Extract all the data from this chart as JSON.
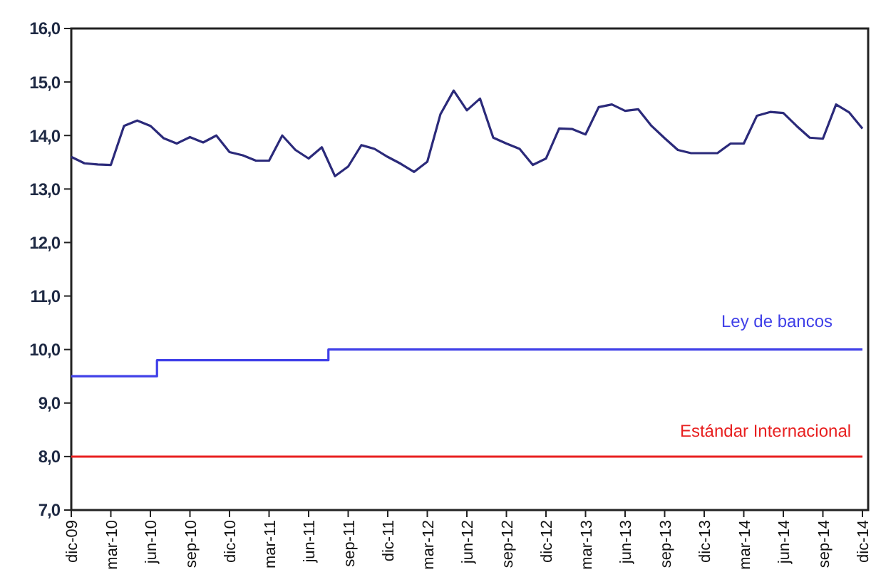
{
  "chart_data": {
    "type": "line",
    "categories": [
      "dic-09",
      null,
      null,
      "mar-10",
      null,
      null,
      "jun-10",
      null,
      null,
      "sep-10",
      null,
      null,
      "dic-10",
      null,
      null,
      "mar-11",
      null,
      null,
      "jun-11",
      null,
      null,
      "sep-11",
      null,
      null,
      "dic-11",
      null,
      null,
      "mar-12",
      null,
      null,
      "jun-12",
      null,
      null,
      "sep-12",
      null,
      null,
      "dic-12",
      null,
      null,
      "mar-13",
      null,
      null,
      "jun-13",
      null,
      null,
      "sep-13",
      null,
      null,
      "dic-13",
      null,
      null,
      "mar-14",
      null,
      null,
      "jun-14",
      null,
      null,
      "sep-14",
      null,
      null,
      "dic-14"
    ],
    "series": [
      {
        "color": "#2b2a7a",
        "values": [
          13.6,
          13.48,
          13.46,
          13.45,
          14.18,
          14.28,
          14.18,
          13.95,
          13.85,
          13.97,
          13.87,
          14.0,
          13.69,
          13.63,
          13.53,
          13.53,
          14.0,
          13.73,
          13.57,
          13.78,
          13.24,
          13.42,
          13.82,
          13.75,
          13.6,
          13.47,
          13.32,
          13.51,
          14.4,
          14.84,
          14.47,
          14.69,
          13.96,
          13.85,
          13.75,
          13.45,
          13.57,
          14.13,
          14.12,
          14.02,
          14.53,
          14.58,
          14.46,
          14.49,
          14.18,
          13.95,
          13.73,
          13.67,
          13.67,
          13.67,
          13.85,
          13.85,
          14.37,
          14.44,
          14.42,
          14.18,
          13.96,
          13.94,
          14.58,
          14.43,
          14.13
        ]
      },
      {
        "name": "Ley de bancos",
        "type": "step",
        "color": "#4040e8",
        "values": [
          9.5,
          9.5,
          9.5,
          9.5,
          9.5,
          9.5,
          9.5,
          9.8,
          9.8,
          9.8,
          9.8,
          9.8,
          9.8,
          9.8,
          9.8,
          9.8,
          9.8,
          9.8,
          9.8,
          9.8,
          10.0,
          10.0,
          10.0,
          10.0,
          10.0,
          10.0,
          10.0,
          10.0,
          10.0,
          10.0,
          10.0,
          10.0,
          10.0,
          10.0,
          10.0,
          10.0,
          10.0,
          10.0,
          10.0,
          10.0,
          10.0,
          10.0,
          10.0,
          10.0,
          10.0,
          10.0,
          10.0,
          10.0,
          10.0,
          10.0,
          10.0,
          10.0,
          10.0,
          10.0,
          10.0,
          10.0,
          10.0,
          10.0,
          10.0,
          10.0,
          10.0
        ]
      }
    ],
    "ref_lines": [
      {
        "axis": "y",
        "value": 8.0,
        "label": "Estándar Internacional",
        "color": "#e82020"
      }
    ],
    "ylim": [
      7,
      16
    ],
    "yticks": [
      {
        "value": 7,
        "label": "7,0"
      },
      {
        "value": 8,
        "label": "8,0"
      },
      {
        "value": 9,
        "label": "9,0"
      },
      {
        "value": 10,
        "label": "10,0"
      },
      {
        "value": 11,
        "label": "11,0"
      },
      {
        "value": 12,
        "label": "12,0"
      },
      {
        "value": 13,
        "label": "13,0"
      },
      {
        "value": 14,
        "label": "14,0"
      },
      {
        "value": 15,
        "label": "15,0"
      },
      {
        "value": 16,
        "label": "16,0"
      }
    ]
  }
}
